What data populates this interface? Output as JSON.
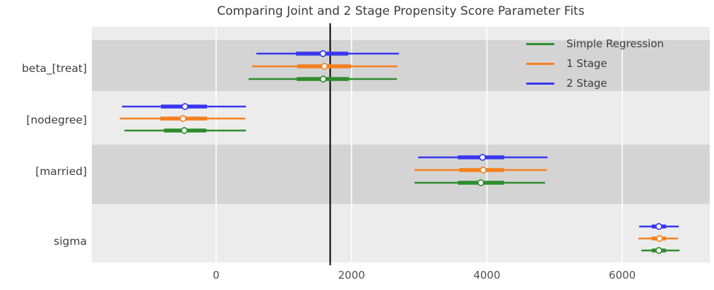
{
  "chart_data": {
    "type": "forest_plot",
    "title": "Comparing Joint and 2 Stage Propensity Score Parameter Fits",
    "xlabel": "",
    "ylabel": "",
    "x_ticks": [
      0,
      2000,
      4000,
      6000
    ],
    "xlim": [
      -1836,
      7292
    ],
    "reference_line_x": 1685,
    "legend_position": "upper right",
    "grid": "white vertical gridlines over alternating gray row bands",
    "background_bands": {
      "dark": "#d4d4d4",
      "light": "#ececec"
    },
    "reference_line_color": "#000000",
    "series": [
      {
        "name": "Simple Regression",
        "color": "#2f8c2d"
      },
      {
        "name": "1 Stage",
        "color": "#f5801e"
      },
      {
        "name": "2 Stage",
        "color": "#3737f0"
      }
    ],
    "parameters": [
      {
        "name": "beta_[treat]",
        "estimates": [
          {
            "series": "2 Stage",
            "mean": 1578,
            "ci_outer": [
              595,
              2700
            ],
            "ci_inner": [
              1180,
              1950
            ]
          },
          {
            "series": "1 Stage",
            "mean": 1600,
            "ci_outer": [
              530,
              2680
            ],
            "ci_inner": [
              1200,
              1990
            ]
          },
          {
            "series": "Simple Regression",
            "mean": 1582,
            "ci_outer": [
              480,
              2670
            ],
            "ci_inner": [
              1190,
              1960
            ]
          }
        ]
      },
      {
        "name": "[nodegree]",
        "estimates": [
          {
            "series": "2 Stage",
            "mean": -460,
            "ci_outer": [
              -1390,
              440
            ],
            "ci_inner": [
              -815,
              -135
            ]
          },
          {
            "series": "1 Stage",
            "mean": -490,
            "ci_outer": [
              -1420,
              430
            ],
            "ci_inner": [
              -825,
              -135
            ]
          },
          {
            "series": "Simple Regression",
            "mean": -470,
            "ci_outer": [
              -1355,
              440
            ],
            "ci_inner": [
              -770,
              -145
            ]
          }
        ]
      },
      {
        "name": "[married]",
        "estimates": [
          {
            "series": "2 Stage",
            "mean": 3935,
            "ci_outer": [
              2985,
              4895
            ],
            "ci_inner": [
              3570,
              4255
            ]
          },
          {
            "series": "1 Stage",
            "mean": 3945,
            "ci_outer": [
              2930,
              4885
            ],
            "ci_inner": [
              3590,
              4255
            ]
          },
          {
            "series": "Simple Regression",
            "mean": 3910,
            "ci_outer": [
              2930,
              4860
            ],
            "ci_inner": [
              3570,
              4255
            ]
          }
        ]
      },
      {
        "name": "sigma",
        "estimates": [
          {
            "series": "2 Stage",
            "mean": 6540,
            "ci_outer": [
              6250,
              6835
            ],
            "ci_inner": [
              6435,
              6645
            ]
          },
          {
            "series": "1 Stage",
            "mean": 6550,
            "ci_outer": [
              6240,
              6825
            ],
            "ci_inner": [
              6435,
              6645
            ]
          },
          {
            "series": "Simple Regression",
            "mean": 6540,
            "ci_outer": [
              6280,
              6845
            ],
            "ci_inner": [
              6435,
              6645
            ]
          }
        ]
      }
    ]
  }
}
